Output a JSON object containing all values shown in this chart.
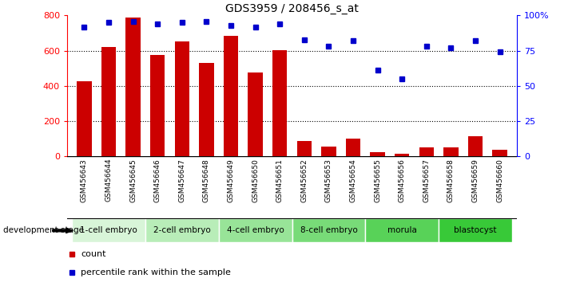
{
  "title": "GDS3959 / 208456_s_at",
  "samples": [
    "GSM456643",
    "GSM456644",
    "GSM456645",
    "GSM456646",
    "GSM456647",
    "GSM456648",
    "GSM456649",
    "GSM456650",
    "GSM456651",
    "GSM456652",
    "GSM456653",
    "GSM456654",
    "GSM456655",
    "GSM456656",
    "GSM456657",
    "GSM456658",
    "GSM456659",
    "GSM456660"
  ],
  "counts": [
    425,
    620,
    790,
    575,
    655,
    530,
    685,
    475,
    605,
    90,
    55,
    100,
    25,
    15,
    50,
    50,
    115,
    40
  ],
  "percentiles": [
    92,
    95,
    96,
    94,
    95,
    96,
    93,
    92,
    94,
    83,
    78,
    82,
    61,
    55,
    78,
    77,
    82,
    74
  ],
  "stages": [
    {
      "label": "1-cell embryo",
      "start": 0,
      "end": 3,
      "color": "#d8f5d8"
    },
    {
      "label": "2-cell embryo",
      "start": 3,
      "end": 6,
      "color": "#b8edb8"
    },
    {
      "label": "4-cell embryo",
      "start": 6,
      "end": 9,
      "color": "#98e498"
    },
    {
      "label": "8-cell embryo",
      "start": 9,
      "end": 12,
      "color": "#78db78"
    },
    {
      "label": "morula",
      "start": 12,
      "end": 15,
      "color": "#58d258"
    },
    {
      "label": "blastocyst",
      "start": 15,
      "end": 18,
      "color": "#38c938"
    }
  ],
  "bar_color": "#cc0000",
  "dot_color": "#0000cc",
  "ylim_left": [
    0,
    800
  ],
  "ylim_right": [
    0,
    100
  ],
  "yticks_left": [
    0,
    200,
    400,
    600,
    800
  ],
  "yticks_right": [
    0,
    25,
    50,
    75,
    100
  ],
  "grid_values": [
    200,
    400,
    600
  ],
  "background_color": "#ffffff",
  "label_row_color": "#d8d8d8"
}
